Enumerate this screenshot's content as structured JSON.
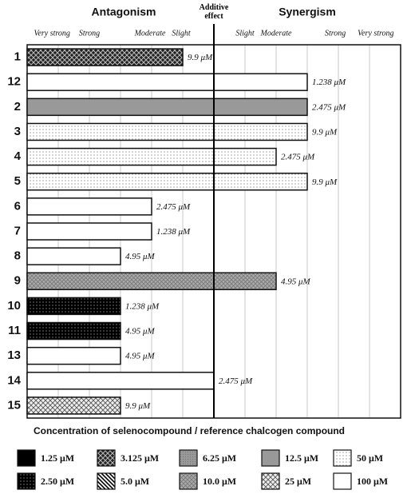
{
  "chart_data": {
    "type": "bar",
    "orientation": "horizontal",
    "left_header": "Antagonism",
    "right_header": "Synergism",
    "additive_label": "Additive effect",
    "additive_value": 6,
    "xlim": [
      0,
      12
    ],
    "xgrid": [
      1,
      2,
      3,
      4,
      5,
      7,
      8,
      9,
      10,
      11
    ],
    "xticks": [
      {
        "value": 0.8,
        "label": "Very strong"
      },
      {
        "value": 2.0,
        "label": "Strong"
      },
      {
        "value": 3.95,
        "label": "Moderate"
      },
      {
        "value": 4.95,
        "label": "Slight"
      },
      {
        "value": 7.0,
        "label": "Slight"
      },
      {
        "value": 8.0,
        "label": "Moderate"
      },
      {
        "value": 9.9,
        "label": "Strong"
      },
      {
        "value": 11.2,
        "label": "Very strong"
      }
    ],
    "categories": [
      "1",
      "12",
      "2",
      "3",
      "4",
      "5",
      "6",
      "7",
      "8",
      "9",
      "10",
      "11",
      "13",
      "14",
      "15"
    ],
    "values": [
      5,
      9,
      9,
      9,
      8,
      9,
      4,
      4,
      3,
      8,
      3,
      3,
      3,
      6,
      3
    ],
    "concentration_labels": [
      "9.9 μM",
      "1.238 μM",
      "2.475 μM",
      "9.9 μM",
      "2.475 μM",
      "9.9 μM",
      "2.475 μM",
      "1.238 μM",
      "4.95 μM",
      "4.95 μM",
      "1.238 μM",
      "4.95 μM",
      "4.95 μM",
      "2.475 μM",
      "9.9 μM"
    ],
    "bar_patterns": [
      "cross-dark",
      "white",
      "gray",
      "dots",
      "dots",
      "dots",
      "white",
      "white",
      "white",
      "cross-gray",
      "black-dots",
      "black-dots",
      "white",
      "white",
      "cross-light"
    ],
    "legend_title": "Concentration of selenocompound / reference chalcogen compound",
    "legend": [
      {
        "name": "1.25 μM",
        "pattern": "black"
      },
      {
        "name": "3.125 μM",
        "pattern": "cross-dark"
      },
      {
        "name": "6.25 μM",
        "pattern": "speckle"
      },
      {
        "name": "12.5 μM",
        "pattern": "gray"
      },
      {
        "name": "50 μM",
        "pattern": "dots"
      },
      {
        "name": "2.50 μM",
        "pattern": "black-dots"
      },
      {
        "name": "5.0 μM",
        "pattern": "diagonal"
      },
      {
        "name": "10.0 μM",
        "pattern": "cross-gray"
      },
      {
        "name": "25 μM",
        "pattern": "cross-light"
      },
      {
        "name": "100 μM",
        "pattern": "white"
      }
    ]
  }
}
